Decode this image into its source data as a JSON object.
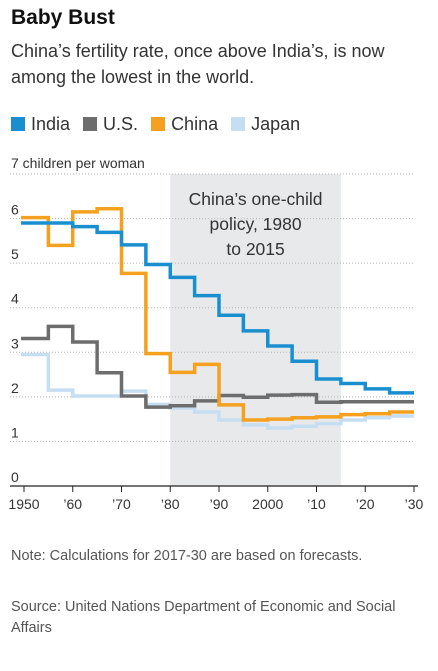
{
  "title": "Baby Bust",
  "subtitle": "China’s fertility rate, once above India’s, is now among the lowest in the world.",
  "legend": [
    {
      "label": "India",
      "color": "#1a8fd0"
    },
    {
      "label": "U.S.",
      "color": "#6d6d6d"
    },
    {
      "label": "China",
      "color": "#f5a11f"
    },
    {
      "label": "Japan",
      "color": "#c6def2"
    }
  ],
  "chart_data": {
    "type": "line",
    "step": true,
    "ylabel": "7 children per woman",
    "ylim": [
      0,
      7
    ],
    "xlim": [
      1950,
      2030
    ],
    "y_ticks": [
      0,
      1,
      2,
      3,
      4,
      5,
      6
    ],
    "y_tick_labels": [
      "0",
      "1",
      "2",
      "3",
      "4",
      "5",
      "6"
    ],
    "x_ticks": [
      1950,
      1960,
      1970,
      1980,
      1990,
      2000,
      2010,
      2020,
      2030
    ],
    "x_tick_labels": [
      "1950",
      "’60",
      "’70",
      "’80",
      "’90",
      "2000",
      "’10",
      "’20",
      "’30"
    ],
    "grid": true,
    "highlight": {
      "start": 1980,
      "end": 2015,
      "label": [
        "China’s one-child",
        "policy, 1980",
        "to 2015"
      ],
      "color": "#e8e9eb"
    },
    "x": [
      1950,
      1955,
      1960,
      1965,
      1970,
      1975,
      1980,
      1985,
      1990,
      1995,
      2000,
      2005,
      2010,
      2015,
      2020,
      2025,
      2030
    ],
    "series": [
      {
        "name": "Japan",
        "color": "#c6def2",
        "values": [
          2.95,
          2.15,
          2.02,
          2.02,
          2.13,
          1.83,
          1.75,
          1.66,
          1.48,
          1.37,
          1.3,
          1.34,
          1.4,
          1.48,
          1.53,
          1.57,
          1.57
        ]
      },
      {
        "name": "U.S.",
        "color": "#6d6d6d",
        "values": [
          3.31,
          3.58,
          3.23,
          2.54,
          2.02,
          1.77,
          1.8,
          1.91,
          2.03,
          1.99,
          2.04,
          2.05,
          1.88,
          1.89,
          1.89,
          1.89,
          1.89
        ]
      },
      {
        "name": "China",
        "color": "#f5a11f",
        "values": [
          6.02,
          5.4,
          6.15,
          6.22,
          4.77,
          2.97,
          2.55,
          2.73,
          1.82,
          1.48,
          1.5,
          1.53,
          1.55,
          1.6,
          1.62,
          1.66,
          1.66
        ]
      },
      {
        "name": "India",
        "color": "#1a8fd0",
        "values": [
          5.9,
          5.9,
          5.82,
          5.69,
          5.41,
          4.97,
          4.68,
          4.27,
          3.83,
          3.48,
          3.14,
          2.8,
          2.4,
          2.3,
          2.18,
          2.09,
          2.09
        ]
      }
    ]
  },
  "note": "Note: Calculations for 2017-30 are based on forecasts.",
  "source": "Source: United Nations Department of Economic and Social Affairs"
}
